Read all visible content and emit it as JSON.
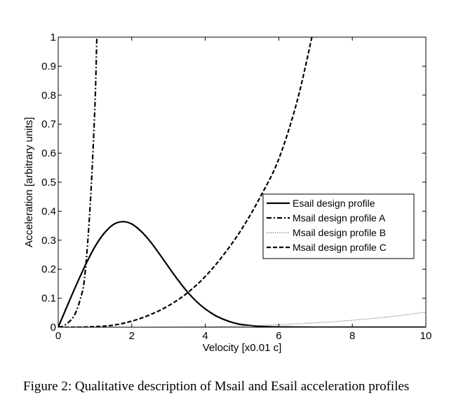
{
  "chart_data": {
    "type": "line",
    "xlabel": "Velocity [x0.01 c]",
    "ylabel": "Acceleration [arbitrary units]",
    "xlim": [
      0,
      10
    ],
    "ylim": [
      0,
      1
    ],
    "xticks": [
      "0",
      "2",
      "4",
      "6",
      "8",
      "10"
    ],
    "yticks": [
      "0",
      "0.1",
      "0.2",
      "0.3",
      "0.4",
      "0.5",
      "0.6",
      "0.7",
      "0.8",
      "0.9",
      "1"
    ],
    "grid": false,
    "legend_position": "middle-right",
    "series": [
      {
        "name": "Esail design profile",
        "style": "solid",
        "color": "#000000",
        "x": [
          0,
          0.25,
          0.5,
          0.75,
          1.0,
          1.25,
          1.5,
          1.75,
          2.0,
          2.25,
          2.5,
          2.75,
          3.0,
          3.25,
          3.5,
          3.75,
          4.0,
          4.25,
          4.5,
          4.75,
          5.0,
          5.5,
          6.0,
          7.0,
          8.0,
          10.0
        ],
        "y": [
          0,
          0.075,
          0.148,
          0.217,
          0.278,
          0.324,
          0.354,
          0.364,
          0.356,
          0.331,
          0.296,
          0.253,
          0.208,
          0.164,
          0.124,
          0.09,
          0.063,
          0.042,
          0.027,
          0.016,
          0.009,
          0.003,
          0.001,
          0,
          0,
          0
        ]
      },
      {
        "name": "Msail design profile A",
        "style": "dashdot",
        "color": "#000000",
        "x": [
          0,
          0.1,
          0.2,
          0.3,
          0.4,
          0.5,
          0.6,
          0.7,
          0.8,
          0.9,
          1.0,
          1.05
        ],
        "y": [
          0,
          0.002,
          0.009,
          0.019,
          0.033,
          0.058,
          0.097,
          0.153,
          0.29,
          0.49,
          0.77,
          1.0
        ]
      },
      {
        "name": "Msail design profile B",
        "style": "dotted",
        "color": "#888888",
        "x": [
          0,
          1,
          2,
          3,
          4,
          5,
          6,
          7,
          8,
          9,
          10
        ],
        "y": [
          0,
          0,
          0,
          0.001,
          0.002,
          0.004,
          0.009,
          0.015,
          0.024,
          0.036,
          0.052
        ]
      },
      {
        "name": "Msail design profile C",
        "style": "dashed",
        "color": "#000000",
        "x": [
          0,
          0.5,
          1,
          1.5,
          2,
          2.5,
          3,
          3.5,
          4,
          4.5,
          5,
          5.5,
          6,
          6.5,
          6.9
        ],
        "y": [
          0,
          0,
          0.002,
          0.007,
          0.021,
          0.043,
          0.074,
          0.117,
          0.175,
          0.25,
          0.34,
          0.45,
          0.58,
          0.78,
          1.0
        ]
      }
    ]
  },
  "caption": "Figure 2: Qualitative description of Msail and Esail acceleration profiles"
}
